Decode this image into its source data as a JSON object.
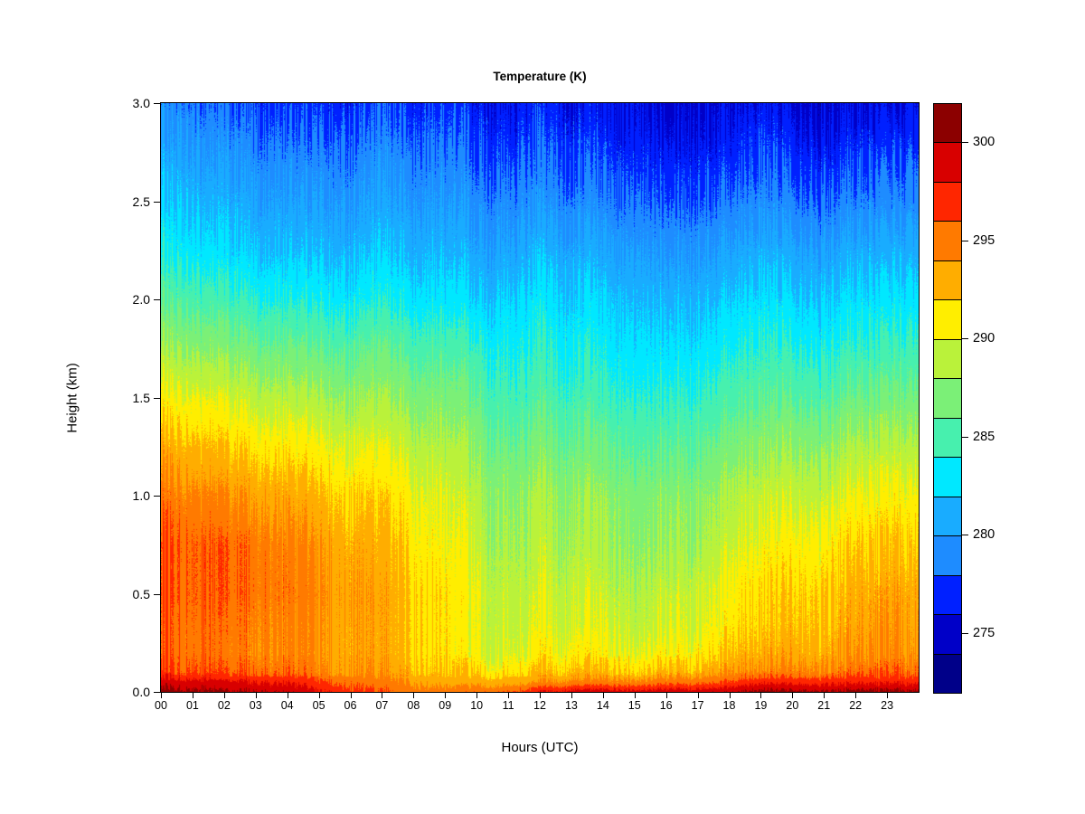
{
  "figure": {
    "background": "#FFFFFF"
  },
  "chart_data": {
    "type": "heatmap",
    "title": "Temperature (K)",
    "xlabel": "Hours (UTC)",
    "ylabel": "Height (km)",
    "xlim": [
      0,
      24
    ],
    "ylim": [
      0.0,
      3.0
    ],
    "zlim": [
      272,
      302
    ],
    "x_tick_labels": [
      "00",
      "01",
      "02",
      "03",
      "04",
      "05",
      "06",
      "07",
      "08",
      "09",
      "10",
      "11",
      "12",
      "13",
      "14",
      "15",
      "16",
      "17",
      "18",
      "19",
      "20",
      "21",
      "22",
      "23"
    ],
    "x_tick_values": [
      0,
      1,
      2,
      3,
      4,
      5,
      6,
      7,
      8,
      9,
      10,
      11,
      12,
      13,
      14,
      15,
      16,
      17,
      18,
      19,
      20,
      21,
      22,
      23
    ],
    "y_tick_labels": [
      "0.0",
      "0.5",
      "1.0",
      "1.5",
      "2.0",
      "2.5",
      "3.0"
    ],
    "y_tick_values": [
      0.0,
      0.5,
      1.0,
      1.5,
      2.0,
      2.5,
      3.0
    ],
    "colorbar_tick_labels": [
      "275",
      "280",
      "285",
      "290",
      "295",
      "300"
    ],
    "colorbar_tick_values": [
      275,
      280,
      285,
      290,
      295,
      300
    ],
    "levels": [
      272,
      274,
      276,
      278,
      280,
      282,
      284,
      286,
      288,
      290,
      292,
      294,
      296,
      298,
      300,
      302
    ],
    "palette_cold_to_hot": [
      "#000089",
      "#0000C8",
      "#0020FF",
      "#1E8CFF",
      "#19ACFF",
      "#00E8FF",
      "#47F0AE",
      "#7BF077",
      "#BAF23A",
      "#FFEE00",
      "#FFAD00",
      "#FF7A00",
      "#FF2600",
      "#D80000",
      "#8C0000"
    ],
    "x_hours": [
      0,
      1,
      2,
      3,
      4,
      5,
      6,
      7,
      8,
      9,
      10,
      11,
      12,
      13,
      14,
      15,
      16,
      17,
      18,
      19,
      20,
      21,
      22,
      23,
      24
    ],
    "heights_km": [
      0,
      0.05,
      0.1,
      0.2,
      0.35,
      0.5,
      0.75,
      1.0,
      1.25,
      1.5,
      1.75,
      2.0,
      2.25,
      2.5,
      2.75,
      3.0
    ],
    "temps_K": [
      [
        300.8,
        299.0,
        296.5,
        295.4,
        295.4,
        295.8,
        295.8,
        294.8,
        292.8,
        290.5,
        288.0,
        285.5,
        283.3,
        281.8,
        280.3,
        278.8
      ],
      [
        300.7,
        298.9,
        296.4,
        295.4,
        295.5,
        295.9,
        295.9,
        294.6,
        292.6,
        290.3,
        287.7,
        285.2,
        283.0,
        281.5,
        280.0,
        278.5
      ],
      [
        300.6,
        298.8,
        296.3,
        295.4,
        295.6,
        296.0,
        296.0,
        294.4,
        292.3,
        290.0,
        287.4,
        284.9,
        282.7,
        281.2,
        279.7,
        278.2
      ],
      [
        300.4,
        298.6,
        296.2,
        295.3,
        295.5,
        295.9,
        295.8,
        294.2,
        292.0,
        289.7,
        287.1,
        284.6,
        282.4,
        280.9,
        279.5,
        277.9
      ],
      [
        299.9,
        298.0,
        295.7,
        294.9,
        295.0,
        295.3,
        295.0,
        293.6,
        291.5,
        289.2,
        286.7,
        284.2,
        282.1,
        280.6,
        279.2,
        277.7
      ],
      [
        298.4,
        296.8,
        294.9,
        294.2,
        294.3,
        294.6,
        294.2,
        292.9,
        290.9,
        288.7,
        286.3,
        283.9,
        281.9,
        280.4,
        279.0,
        277.5
      ],
      [
        297.1,
        295.6,
        294.2,
        293.6,
        293.7,
        293.9,
        293.4,
        292.2,
        290.3,
        288.2,
        286.0,
        283.6,
        281.7,
        280.2,
        278.9,
        277.4
      ],
      [
        296.0,
        294.7,
        293.5,
        292.9,
        292.9,
        293.0,
        292.4,
        291.4,
        289.7,
        287.7,
        285.7,
        283.3,
        281.5,
        280.0,
        278.7,
        277.2
      ],
      [
        295.2,
        293.8,
        292.7,
        292.0,
        292.0,
        292.0,
        291.3,
        290.5,
        289.0,
        287.2,
        285.3,
        283.0,
        281.3,
        279.8,
        278.5,
        277.1
      ],
      [
        294.8,
        293.0,
        291.9,
        291.0,
        290.8,
        291.0,
        290.2,
        289.6,
        288.3,
        286.7,
        284.9,
        282.7,
        281.1,
        279.6,
        278.3,
        277.0
      ],
      [
        295.8,
        293.2,
        291.7,
        290.4,
        290.0,
        290.2,
        289.4,
        288.8,
        287.6,
        286.2,
        284.5,
        282.4,
        280.8,
        279.4,
        278.1,
        276.9
      ],
      [
        296.2,
        293.5,
        292.0,
        290.5,
        289.8,
        289.6,
        288.9,
        288.2,
        286.9,
        285.4,
        284.2,
        282.9,
        281.2,
        279.6,
        278.1,
        276.8
      ],
      [
        298.0,
        294.0,
        292.2,
        290.6,
        289.7,
        289.4,
        288.6,
        288.0,
        286.6,
        285.0,
        283.8,
        282.6,
        281.0,
        279.2,
        277.8,
        276.6
      ],
      [
        299.0,
        294.5,
        292.4,
        290.7,
        289.7,
        289.3,
        288.4,
        287.8,
        286.4,
        284.8,
        283.6,
        282.4,
        280.8,
        279.0,
        277.6,
        276.4
      ],
      [
        299.3,
        294.8,
        292.6,
        290.8,
        289.7,
        289.3,
        288.3,
        287.7,
        286.3,
        284.7,
        283.4,
        282.2,
        280.6,
        278.9,
        277.5,
        276.3
      ],
      [
        299.5,
        295.1,
        292.8,
        290.9,
        289.8,
        289.4,
        288.3,
        287.7,
        286.3,
        284.7,
        283.3,
        282.1,
        280.5,
        278.8,
        277.4,
        276.2
      ],
      [
        299.6,
        295.4,
        293.1,
        291.1,
        290.0,
        289.6,
        288.4,
        287.8,
        286.3,
        284.8,
        283.3,
        282.0,
        280.4,
        278.7,
        277.3,
        276.1
      ],
      [
        299.7,
        295.7,
        293.4,
        291.5,
        290.4,
        290.0,
        288.8,
        288.0,
        286.5,
        284.9,
        283.4,
        282.0,
        280.4,
        278.6,
        277.2,
        276.0
      ],
      [
        299.8,
        296.1,
        293.8,
        292.0,
        291.0,
        290.6,
        289.4,
        288.4,
        286.8,
        285.1,
        283.6,
        282.1,
        280.4,
        278.6,
        277.1,
        275.9
      ],
      [
        300.6,
        297.5,
        294.2,
        292.6,
        291.7,
        291.3,
        290.1,
        288.9,
        287.2,
        285.4,
        283.8,
        282.2,
        280.5,
        278.6,
        277.1,
        275.8
      ],
      [
        300.6,
        297.5,
        294.6,
        293.1,
        292.3,
        292.0,
        290.8,
        289.4,
        287.7,
        285.7,
        284.0,
        282.3,
        280.6,
        278.6,
        277.1,
        275.7
      ],
      [
        300.6,
        297.5,
        294.9,
        293.4,
        292.7,
        292.4,
        291.3,
        289.8,
        288.0,
        285.9,
        284.1,
        282.4,
        280.7,
        278.7,
        277.1,
        275.6
      ],
      [
        300.6,
        297.5,
        295.1,
        293.6,
        293.0,
        292.7,
        291.6,
        290.1,
        288.3,
        286.1,
        284.2,
        282.5,
        280.7,
        278.7,
        277.1,
        275.6
      ],
      [
        300.6,
        297.5,
        295.2,
        293.8,
        293.2,
        292.9,
        291.8,
        290.3,
        288.4,
        286.2,
        284.3,
        282.5,
        280.7,
        278.7,
        277.1,
        275.5
      ],
      [
        300.6,
        297.5,
        295.2,
        293.9,
        293.3,
        293.0,
        291.9,
        290.4,
        288.5,
        286.3,
        284.3,
        282.5,
        280.7,
        278.7,
        277.1,
        275.5
      ]
    ]
  }
}
